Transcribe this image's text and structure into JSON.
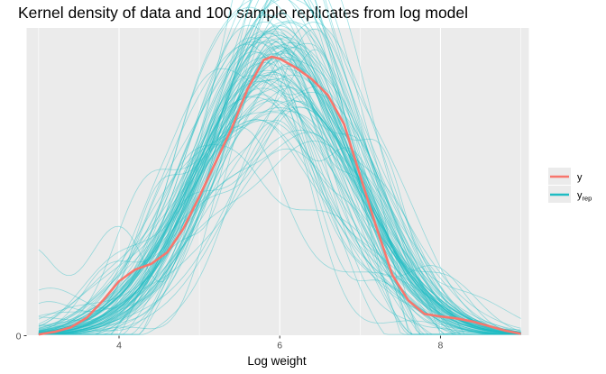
{
  "chart_data": {
    "type": "line",
    "title": "Kernel density of data and 100 sample replicates from log model",
    "xlabel": "Log weight",
    "ylabel": "",
    "xlim": [
      2.85,
      9.1
    ],
    "ylim": [
      0,
      0.48
    ],
    "x_ticks": [
      4,
      6,
      8
    ],
    "y_ticks": [
      0
    ],
    "grid": true,
    "legend_position": "right",
    "series": [
      {
        "name": "y",
        "color": "#F8766D",
        "x": [
          3.0,
          3.2,
          3.4,
          3.6,
          3.8,
          4.0,
          4.2,
          4.4,
          4.6,
          4.8,
          5.0,
          5.2,
          5.4,
          5.6,
          5.8,
          5.9,
          6.0,
          6.2,
          6.4,
          6.6,
          6.8,
          7.0,
          7.2,
          7.4,
          7.6,
          7.8,
          8.0,
          8.2,
          8.4,
          8.6,
          8.8,
          9.0
        ],
        "values": [
          0.002,
          0.006,
          0.013,
          0.028,
          0.055,
          0.085,
          0.103,
          0.112,
          0.13,
          0.167,
          0.217,
          0.27,
          0.323,
          0.385,
          0.43,
          0.435,
          0.432,
          0.418,
          0.4,
          0.375,
          0.33,
          0.25,
          0.17,
          0.095,
          0.055,
          0.034,
          0.03,
          0.027,
          0.022,
          0.015,
          0.008,
          0.003
        ]
      },
      {
        "name": "y_rep",
        "label_main": "y",
        "label_sub": "rep",
        "color": "#1FBCC3",
        "count": 100
      }
    ]
  }
}
